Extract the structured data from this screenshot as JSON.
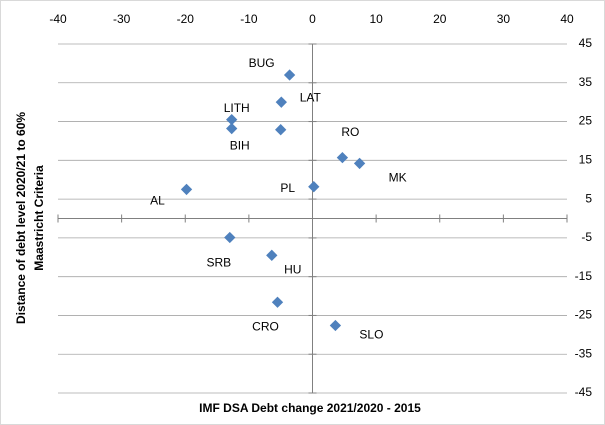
{
  "chart_data": {
    "type": "scatter",
    "xlabel": "IMF DSA Debt change 2021/2020  - 2015",
    "ylabel": [
      "Distance of debt level 2020/21 to 60%",
      "Maastricht Criteria"
    ],
    "xlim": [
      -40,
      40
    ],
    "xticks": [
      -40,
      -30,
      -20,
      -10,
      0,
      10,
      20,
      30,
      40
    ],
    "ylim": [
      -45,
      45
    ],
    "yticks": [
      45,
      35,
      25,
      15,
      5,
      -5,
      -15,
      -25,
      -35,
      -45
    ],
    "grid": true,
    "color": "#4f81bd",
    "labels": [
      "BUG",
      "LAT",
      "LITH",
      "BIH",
      null,
      "RO",
      "MK",
      "PL",
      "AL",
      "SRB",
      "HU",
      "CRO",
      "SLO"
    ],
    "x": [
      -3.6,
      -4.9,
      -12.7,
      -12.7,
      -5,
      4.7,
      7.4,
      0.2,
      -19.8,
      -13,
      -6.4,
      -5.5,
      3.6
    ],
    "y": [
      37,
      30,
      25.5,
      23.2,
      22.9,
      15.7,
      14.2,
      8.2,
      7.5,
      -4.9,
      -9.5,
      -21.6,
      -27.6
    ]
  }
}
